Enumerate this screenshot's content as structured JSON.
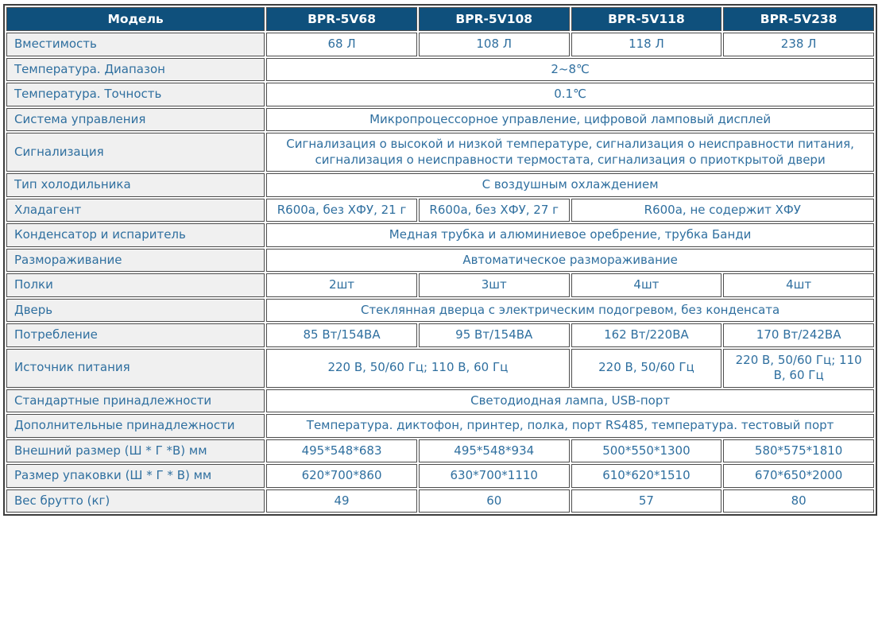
{
  "colors": {
    "header_bg": "#0f507c",
    "header_text": "#ffffff",
    "cell_text": "#2f6f9f",
    "label_bg": "#f0f0f0",
    "border": "#4d4d4d"
  },
  "table": {
    "header": {
      "model_column_label": "Модель",
      "models": [
        "BPR-5V68",
        "BPR-5V108",
        "BPR-5V118",
        "BPR-5V238"
      ]
    },
    "rows": [
      {
        "label": "Вместимость",
        "cells": [
          {
            "text": "68 Л",
            "span": 1
          },
          {
            "text": "108 Л",
            "span": 1
          },
          {
            "text": "118 Л",
            "span": 1
          },
          {
            "text": "238 Л",
            "span": 1
          }
        ]
      },
      {
        "label": "Температура. Диапазон",
        "cells": [
          {
            "text": "2~8℃",
            "span": 4
          }
        ]
      },
      {
        "label": "Температура. Точность",
        "cells": [
          {
            "text": "0.1℃",
            "span": 4
          }
        ]
      },
      {
        "label": "Система управления",
        "cells": [
          {
            "text": "Микропроцессорное управление, цифровой ламповый дисплей",
            "span": 4
          }
        ]
      },
      {
        "label": "Сигнализация",
        "cells": [
          {
            "text": "Сигнализация о высокой и низкой температуре, сигнализация о неисправности питания, сигнализация о неисправности термостата, сигнализация о приоткрытой двери",
            "span": 4
          }
        ]
      },
      {
        "label": "Тип холодильника",
        "cells": [
          {
            "text": "С воздушным охлаждением",
            "span": 4
          }
        ]
      },
      {
        "label": "Хладагент",
        "cells": [
          {
            "text": "R600a, без ХФУ, 21 г",
            "span": 1
          },
          {
            "text": "R600a, без ХФУ, 27 г",
            "span": 1
          },
          {
            "text": "R600a, не содержит ХФУ",
            "span": 2
          }
        ]
      },
      {
        "label": "Конденсатор и испаритель",
        "cells": [
          {
            "text": "Медная трубка и алюминиевое оребрение, трубка Банди",
            "span": 4
          }
        ]
      },
      {
        "label": "Размораживание",
        "cells": [
          {
            "text": "Автоматическое размораживание",
            "span": 4
          }
        ]
      },
      {
        "label": "Полки",
        "cells": [
          {
            "text": "2шт",
            "span": 1
          },
          {
            "text": "3шт",
            "span": 1
          },
          {
            "text": "4шт",
            "span": 1
          },
          {
            "text": "4шт",
            "span": 1
          }
        ]
      },
      {
        "label": "Дверь",
        "cells": [
          {
            "text": "Стеклянная дверца с электрическим подогревом, без конденсата",
            "span": 4
          }
        ]
      },
      {
        "label": "Потребление",
        "cells": [
          {
            "text": "85 Вт/154ВА",
            "span": 1
          },
          {
            "text": "95 Вт/154ВА",
            "span": 1
          },
          {
            "text": "162 Вт/220ВА",
            "span": 1
          },
          {
            "text": "170 Вт/242ВА",
            "span": 1
          }
        ]
      },
      {
        "label": "Источник питания",
        "cells": [
          {
            "text": "220 В, 50/60 Гц; 110 В, 60 Гц",
            "span": 2
          },
          {
            "text": "220 В, 50/60 Гц",
            "span": 1
          },
          {
            "text": "220 В, 50/60 Гц; 110 В, 60 Гц",
            "span": 1
          }
        ]
      },
      {
        "label": "Стандартные принадлежности",
        "cells": [
          {
            "text": "Светодиодная лампа, USB-порт",
            "span": 4
          }
        ]
      },
      {
        "label": "Дополнительные принадлежности",
        "cells": [
          {
            "text": "Температура. диктофон, принтер, полка, порт RS485, температура. тестовый порт",
            "span": 4
          }
        ]
      },
      {
        "label": "Внешний размер (Ш * Г *В) мм",
        "cells": [
          {
            "text": "495*548*683",
            "span": 1
          },
          {
            "text": "495*548*934",
            "span": 1
          },
          {
            "text": "500*550*1300",
            "span": 1
          },
          {
            "text": "580*575*1810",
            "span": 1
          }
        ]
      },
      {
        "label": "Размер упаковки (Ш * Г * В) мм",
        "cells": [
          {
            "text": "620*700*860",
            "span": 1
          },
          {
            "text": "630*700*1110",
            "span": 1
          },
          {
            "text": "610*620*1510",
            "span": 1
          },
          {
            "text": "670*650*2000",
            "span": 1
          }
        ]
      },
      {
        "label": "Вес брутто (кг)",
        "cells": [
          {
            "text": "49",
            "span": 1
          },
          {
            "text": "60",
            "span": 1
          },
          {
            "text": "57",
            "span": 1
          },
          {
            "text": "80",
            "span": 1
          }
        ]
      }
    ]
  }
}
